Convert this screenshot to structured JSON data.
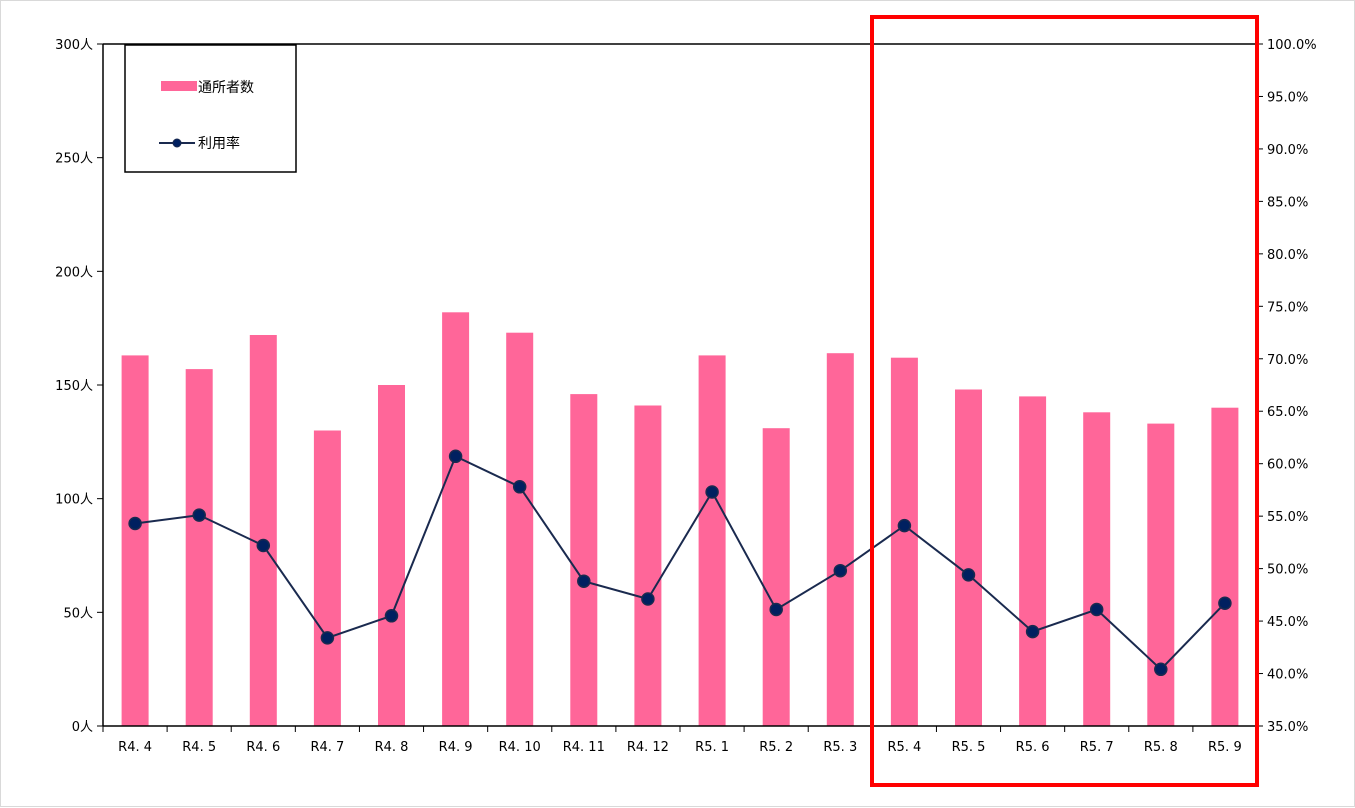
{
  "chart_data": {
    "type": "bar",
    "categories": [
      "R4. 4",
      "R4. 5",
      "R4. 6",
      "R4. 7",
      "R4. 8",
      "R4. 9",
      "R4. 10",
      "R4. 11",
      "R4. 12",
      "R5. 1",
      "R5. 2",
      "R5. 3",
      "R5. 4",
      "R5. 5",
      "R5. 6",
      "R5. 7",
      "R5. 8",
      "R5. 9"
    ],
    "series": [
      {
        "name": "通所者数",
        "type": "bar",
        "axis": "left",
        "color": "#ff6699",
        "values": [
          163,
          157,
          172,
          130,
          150,
          182,
          173,
          146,
          141,
          163,
          131,
          164,
          162,
          148,
          145,
          138,
          133,
          140
        ]
      },
      {
        "name": "利用率",
        "type": "line",
        "axis": "right",
        "color": "#1a2a4f",
        "marker_fill": "#002060",
        "values": [
          54.3,
          55.1,
          52.2,
          43.4,
          45.5,
          60.7,
          57.8,
          48.8,
          47.1,
          57.3,
          46.1,
          49.8,
          54.1,
          49.4,
          44.0,
          46.1,
          40.4,
          46.7
        ]
      }
    ],
    "y_left": {
      "range": [
        0,
        300
      ],
      "ticks": [
        0,
        50,
        100,
        150,
        200,
        250,
        300
      ],
      "tick_labels": [
        "0人",
        "50人",
        "100人",
        "150人",
        "200人",
        "250人",
        "300人"
      ]
    },
    "y_right": {
      "range": [
        35,
        100
      ],
      "ticks": [
        35,
        40,
        45,
        50,
        55,
        60,
        65,
        70,
        75,
        80,
        85,
        90,
        95,
        100
      ],
      "tick_labels": [
        "35.0%",
        "40.0%",
        "45.0%",
        "50.0%",
        "55.0%",
        "60.0%",
        "65.0%",
        "70.0%",
        "75.0%",
        "80.0%",
        "85.0%",
        "90.0%",
        "95.0%",
        "100.0%"
      ]
    },
    "grid": false,
    "legend": {
      "position": "top-left",
      "entries": [
        "通所者数",
        "利用率"
      ]
    },
    "highlight": {
      "from": "R5. 4",
      "to": "R5. 9",
      "color": "#ff0000"
    }
  }
}
